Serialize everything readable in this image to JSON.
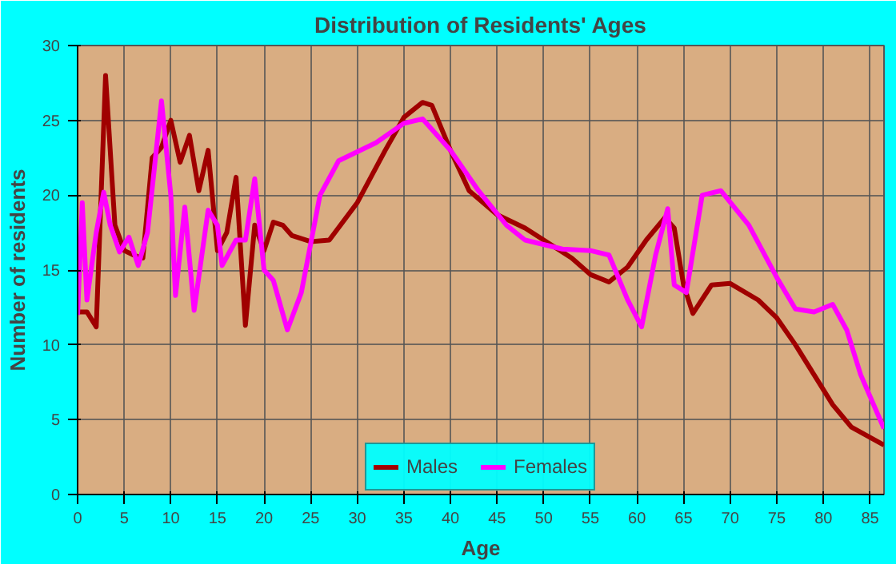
{
  "chart_data": {
    "type": "line",
    "title": "Distribution of Residents' Ages",
    "xlabel": "Age",
    "ylabel": "Number of residents",
    "xlim": [
      0,
      86.5
    ],
    "ylim": [
      0,
      30
    ],
    "xticks": [
      0,
      5,
      10,
      15,
      20,
      25,
      30,
      35,
      40,
      45,
      50,
      55,
      60,
      65,
      70,
      75,
      80,
      85
    ],
    "yticks": [
      0,
      5,
      10,
      15,
      20,
      25,
      30
    ],
    "grid": true,
    "legend": "bottom",
    "series": [
      {
        "name": "Males",
        "color": "#a00000",
        "x": [
          0,
          1,
          2,
          3,
          4,
          5,
          6,
          7,
          8,
          9,
          10,
          11,
          12,
          13,
          14,
          15,
          16,
          17,
          18,
          19,
          20,
          21,
          22,
          23,
          25,
          27,
          30,
          33,
          35,
          37,
          38,
          40,
          42,
          45,
          48,
          50,
          53,
          55,
          57,
          59,
          61,
          63,
          64,
          65,
          66,
          68,
          70,
          73,
          75,
          77,
          79,
          81,
          83,
          86.5
        ],
        "values": [
          12.2,
          12.2,
          11.2,
          28,
          18,
          16.3,
          16,
          15.8,
          22.5,
          23.2,
          25,
          22.2,
          24,
          20.3,
          23,
          16.3,
          17.5,
          21.2,
          11.3,
          18,
          16.3,
          18.2,
          18,
          17.3,
          16.9,
          17,
          19.5,
          23,
          25.2,
          26.2,
          26,
          23,
          20.3,
          18.7,
          17.8,
          17,
          15.8,
          14.7,
          14.2,
          15.2,
          17,
          18.5,
          17.8,
          14,
          12.1,
          14,
          14.1,
          13,
          11.8,
          10,
          8,
          6,
          4.5,
          3.3
        ]
      },
      {
        "name": "Females",
        "color": "#ff00ff",
        "x": [
          0,
          0.5,
          1,
          2,
          2.8,
          3.5,
          4.5,
          5.5,
          6.5,
          7.5,
          9,
          10,
          10.5,
          11.5,
          12.5,
          14,
          15,
          15.5,
          17,
          18,
          19,
          20,
          21,
          22.5,
          24,
          26,
          28,
          30,
          32,
          35,
          37,
          40,
          43,
          46,
          48,
          52,
          55,
          57,
          59,
          60.5,
          62,
          63.3,
          64,
          65.3,
          67,
          69,
          72,
          75,
          77,
          79,
          81,
          82.5,
          84,
          86.5
        ],
        "values": [
          12,
          19.5,
          13,
          17.5,
          20.2,
          18,
          16.2,
          17.2,
          15.3,
          17.5,
          26.3,
          20,
          13.3,
          19.2,
          12.3,
          19,
          18,
          15.3,
          17,
          17,
          21.1,
          15,
          14.3,
          11,
          13.5,
          20,
          22.3,
          22.9,
          23.5,
          24.8,
          25.1,
          23,
          20.3,
          18,
          17,
          16.4,
          16.3,
          16,
          13,
          11.2,
          16,
          19.1,
          14,
          13.5,
          20,
          20.3,
          18,
          14.5,
          12.4,
          12.2,
          12.7,
          11,
          8,
          4.4
        ]
      }
    ]
  }
}
